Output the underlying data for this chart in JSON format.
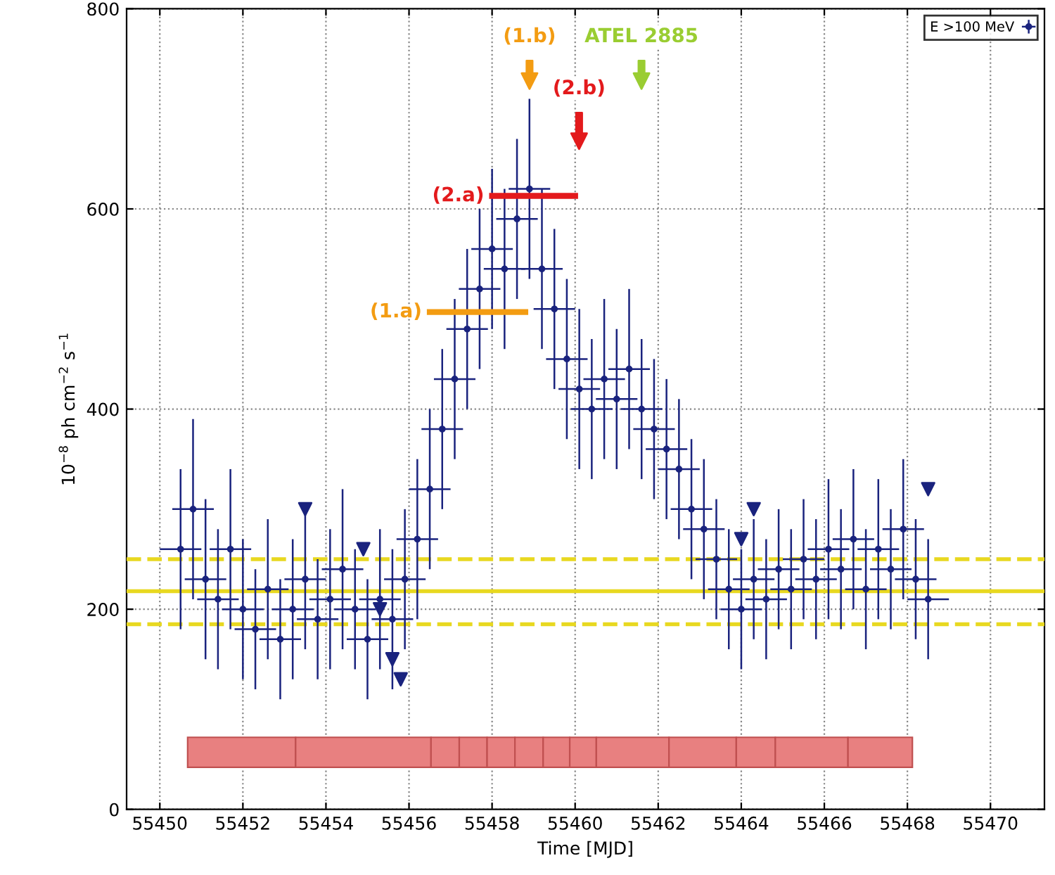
{
  "chart_data": {
    "type": "scatter",
    "xlabel": "Time [MJD]",
    "ylabel": "10$^{−8}$ ph cm$^{−2}$ s$^{−1}$",
    "xlim": [
      55449.2,
      55471.3
    ],
    "xticks": [
      55450,
      55452,
      55454,
      55456,
      55458,
      55460,
      55462,
      55464,
      55466,
      55468,
      55470
    ],
    "ylim": [
      0,
      800
    ],
    "yticks": [
      0,
      200,
      400,
      600,
      800
    ],
    "grid": true,
    "legend": "top right",
    "marker": "circle",
    "series": [
      {
        "name": "E >100 MeV",
        "color": "#1a237e",
        "x": [
          55450.5,
          55450.8,
          55451.1,
          55451.4,
          55451.7,
          55452.0,
          55452.3,
          55452.6,
          55452.9,
          55453.2,
          55453.5,
          55453.8,
          55454.1,
          55454.4,
          55454.7,
          55455.0,
          55455.3,
          55455.6,
          55455.9,
          55456.2,
          55456.5,
          55456.8,
          55457.1,
          55457.4,
          55457.7,
          55458.0,
          55458.3,
          55458.6,
          55458.9,
          55459.2,
          55459.5,
          55459.8,
          55460.1,
          55460.4,
          55460.7,
          55461.0,
          55461.3,
          55461.6,
          55461.9,
          55462.2,
          55462.5,
          55462.8,
          55463.1,
          55463.4,
          55463.7,
          55464.0,
          55464.3,
          55464.6,
          55464.9,
          55465.2,
          55465.5,
          55465.8,
          55466.1,
          55466.4,
          55466.7,
          55467.0,
          55467.3,
          55467.6,
          55467.9,
          55468.2,
          55468.5
        ],
        "values": [
          260,
          300,
          230,
          210,
          260,
          200,
          180,
          220,
          170,
          200,
          230,
          190,
          210,
          240,
          200,
          170,
          210,
          190,
          230,
          270,
          320,
          380,
          430,
          480,
          520,
          560,
          540,
          590,
          620,
          540,
          500,
          450,
          420,
          400,
          430,
          410,
          440,
          400,
          380,
          360,
          340,
          300,
          280,
          250,
          220,
          200,
          230,
          210,
          240,
          220,
          250,
          230,
          260,
          240,
          270,
          220,
          260,
          240,
          280,
          230,
          210
        ],
        "errors": [
          80,
          90,
          80,
          70,
          80,
          70,
          60,
          70,
          60,
          70,
          70,
          60,
          70,
          80,
          60,
          60,
          70,
          70,
          70,
          80,
          80,
          80,
          80,
          80,
          80,
          80,
          80,
          80,
          90,
          80,
          80,
          80,
          80,
          70,
          80,
          70,
          80,
          70,
          70,
          70,
          70,
          70,
          70,
          60,
          60,
          60,
          60,
          60,
          60,
          60,
          60,
          60,
          70,
          60,
          70,
          60,
          70,
          60,
          70,
          60,
          60
        ],
        "xerrors": [
          0.5,
          0.5,
          0.5,
          0.5,
          0.5,
          0.5,
          0.5,
          0.5,
          0.5,
          0.5,
          0.5,
          0.5,
          0.5,
          0.5,
          0.5,
          0.5,
          0.5,
          0.5,
          0.5,
          0.5,
          0.5,
          0.5,
          0.5,
          0.5,
          0.5,
          0.5,
          0.5,
          0.5,
          0.5,
          0.5,
          0.5,
          0.5,
          0.5,
          0.5,
          0.5,
          0.5,
          0.5,
          0.5,
          0.5,
          0.5,
          0.5,
          0.5,
          0.5,
          0.5,
          0.5,
          0.5,
          0.5,
          0.5,
          0.5,
          0.5,
          0.5,
          0.5,
          0.5,
          0.5,
          0.5,
          0.5,
          0.5,
          0.5,
          0.5,
          0.5,
          0.5
        ]
      },
      {
        "marker": "triangle",
        "color": "#1a237e",
        "x": [
          55453.5,
          55454.9,
          55455.3,
          55455.6,
          55455.8,
          55464.0,
          55464.3,
          55468.5
        ],
        "values": [
          300,
          260,
          200,
          150,
          130,
          270,
          300,
          320
        ]
      },
      {
        "type": "line",
        "marker": "none",
        "color": "#e31a1c",
        "x": [
          55458.0,
          55460.0
        ],
        "values": [
          613,
          613
        ]
      },
      {
        "type": "line",
        "marker": "none",
        "color": "#f39c12",
        "x": [
          55456.5,
          55458.8
        ],
        "values": [
          497,
          497
        ]
      }
    ],
    "ref_lines": [
      {
        "axis": "y",
        "value": 218,
        "color": "#e8d820",
        "line_style": "solid"
      },
      {
        "axis": "y",
        "value": 250,
        "color": "#e8d820",
        "line_style": "dashed"
      },
      {
        "axis": "y",
        "value": 185,
        "color": "#e8d820",
        "line_style": "dashed"
      }
    ],
    "annotations": [
      "(1.b)",
      "(2.b)",
      "ATEL 2885",
      {
        "text": "(2.a)",
        "x": 55458.0,
        "y": 613
      },
      {
        "text": "(1.a)",
        "x": 55456.5,
        "y": 497
      }
    ]
  }
}
